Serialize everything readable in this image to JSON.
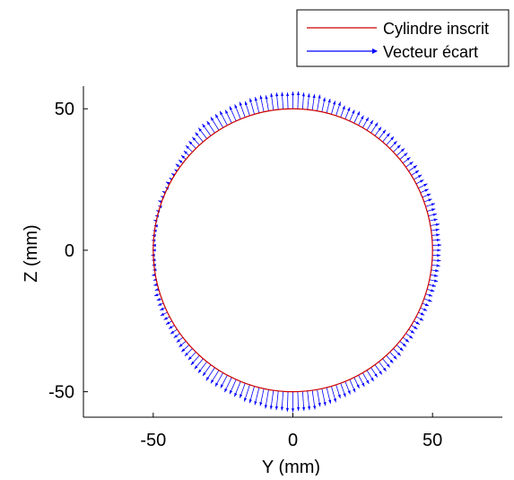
{
  "chart_data": {
    "type": "line",
    "title": "",
    "xlabel": "Y (mm)",
    "ylabel": "Z (mm)",
    "xlim": [
      -75,
      75
    ],
    "ylim": [
      -59,
      58
    ],
    "aspect": "equal",
    "grid": false,
    "box": "left-bottom axes only",
    "x_ticks": [
      -50,
      0,
      50
    ],
    "y_ticks": [
      -50,
      0,
      50
    ],
    "x_tick_labels": [
      "-50",
      "0",
      "50"
    ],
    "y_tick_labels": [
      "-50",
      "0",
      "50"
    ],
    "legend": {
      "placement": "top-right, outside axes",
      "entries": [
        {
          "label": "Cylindre inscrit",
          "color": "#cc0000",
          "style": "line"
        },
        {
          "label": "Vecteur écart",
          "color": "#0000ff",
          "style": "arrow"
        }
      ]
    },
    "series": [
      {
        "name": "Cylindre inscrit",
        "shape": "circle",
        "center": [
          0,
          0
        ],
        "radius": 50,
        "color": "#cc0000"
      },
      {
        "name": "Vecteur écart",
        "shape": "radial arrows from circle outward",
        "color": "#0000ff",
        "arrow_count": 180,
        "angle_deg": [
          0,
          30,
          60,
          90,
          120,
          150,
          180,
          210,
          240,
          270,
          300,
          330
        ],
        "deviation_mm": [
          3.0,
          3.3,
          4.2,
          6.0,
          5.5,
          1.2,
          0.5,
          2.5,
          5.5,
          7.0,
          4.5,
          2.6
        ]
      }
    ]
  }
}
